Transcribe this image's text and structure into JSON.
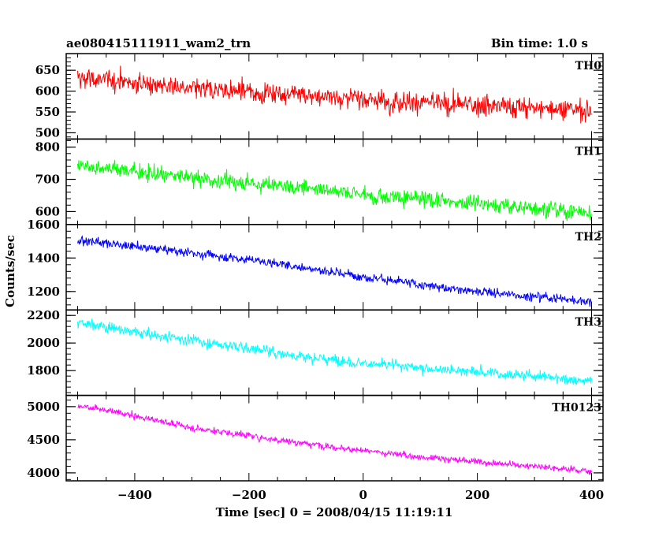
{
  "header": {
    "title": "ae080415111911_wam2_trn",
    "bin_time": "Bin time: 1.0 s"
  },
  "chart_data": {
    "type": "line",
    "title": "ae080415111911_wam2_trn",
    "subtitle": "Bin time: 1.0 s",
    "xlabel": "Time [sec] 0 = 2008/04/15 11:19:11",
    "ylabel": "Counts/sec",
    "xlim": [
      -520,
      420
    ],
    "x_ticks": [
      -400,
      -200,
      0,
      200,
      400
    ],
    "x_range_data": [
      -500,
      400
    ],
    "panels": [
      {
        "name": "TH0",
        "color": "#ff0000",
        "ylim": [
          485,
          690
        ],
        "y_ticks": [
          500,
          550,
          600,
          650
        ],
        "trend": {
          "x": [
            -500,
            -400,
            -300,
            -200,
            -100,
            0,
            100,
            200,
            300,
            400
          ],
          "y": [
            632,
            620,
            605,
            597,
            590,
            580,
            574,
            566,
            560,
            555
          ]
        },
        "noise": 38
      },
      {
        "name": "TH1",
        "color": "#00ff00",
        "ylim": [
          560,
          825
        ],
        "y_ticks": [
          600,
          700,
          800
        ],
        "trend": {
          "x": [
            -500,
            -400,
            -300,
            -200,
            -100,
            0,
            100,
            200,
            300,
            400
          ],
          "y": [
            745,
            725,
            705,
            688,
            675,
            655,
            640,
            625,
            610,
            595
          ]
        },
        "noise": 38
      },
      {
        "name": "TH2",
        "color": "#0000ff",
        "ylim": [
          1090,
          1600
        ],
        "y_ticks": [
          1200,
          1400,
          1600
        ],
        "trend": {
          "x": [
            -500,
            -400,
            -300,
            -200,
            -100,
            0,
            100,
            200,
            300,
            400
          ],
          "y": [
            1510,
            1470,
            1430,
            1390,
            1340,
            1290,
            1240,
            1200,
            1170,
            1140
          ]
        },
        "noise": 40
      },
      {
        "name": "TH3",
        "color": "#00ffff",
        "ylim": [
          1620,
          2240
        ],
        "y_ticks": [
          1800,
          2000,
          2200
        ],
        "trend": {
          "x": [
            -500,
            -400,
            -300,
            -200,
            -100,
            0,
            100,
            200,
            300,
            400
          ],
          "y": [
            2150,
            2080,
            2020,
            1960,
            1900,
            1850,
            1820,
            1790,
            1760,
            1720
          ]
        },
        "noise": 60
      },
      {
        "name": "TH0123",
        "color": "#ff00ff",
        "ylim": [
          3880,
          5170
        ],
        "y_ticks": [
          4000,
          4500,
          5000
        ],
        "trend": {
          "x": [
            -500,
            -400,
            -300,
            -200,
            -100,
            0,
            100,
            200,
            300,
            400
          ],
          "y": [
            5020,
            4860,
            4680,
            4560,
            4440,
            4330,
            4240,
            4170,
            4100,
            4020
          ]
        },
        "noise": 75
      }
    ]
  }
}
